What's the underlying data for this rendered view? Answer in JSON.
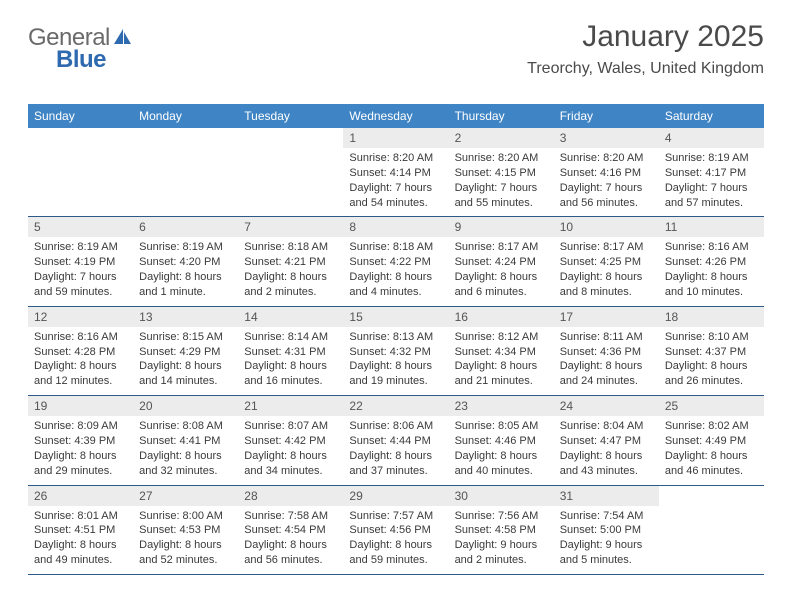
{
  "logo": {
    "part1": "General",
    "part2": "Blue"
  },
  "header": {
    "month_title": "January 2025",
    "location": "Treorchy, Wales, United Kingdom"
  },
  "colors": {
    "header_bg": "#3f84c4",
    "header_text": "#ffffff",
    "row_divider": "#2c5a8a",
    "daynum_bg": "#ececec",
    "daynum_text": "#555555",
    "body_text": "#3a3a3a",
    "page_bg": "#ffffff",
    "logo_grey": "#6a6a6a",
    "logo_blue": "#2f6aaf"
  },
  "calendar": {
    "day_headers": [
      "Sunday",
      "Monday",
      "Tuesday",
      "Wednesday",
      "Thursday",
      "Friday",
      "Saturday"
    ],
    "weeks": [
      [
        {
          "n": "",
          "sr": "",
          "ss": "",
          "dl": ""
        },
        {
          "n": "",
          "sr": "",
          "ss": "",
          "dl": ""
        },
        {
          "n": "",
          "sr": "",
          "ss": "",
          "dl": ""
        },
        {
          "n": "1",
          "sr": "Sunrise: 8:20 AM",
          "ss": "Sunset: 4:14 PM",
          "dl": "Daylight: 7 hours and 54 minutes."
        },
        {
          "n": "2",
          "sr": "Sunrise: 8:20 AM",
          "ss": "Sunset: 4:15 PM",
          "dl": "Daylight: 7 hours and 55 minutes."
        },
        {
          "n": "3",
          "sr": "Sunrise: 8:20 AM",
          "ss": "Sunset: 4:16 PM",
          "dl": "Daylight: 7 hours and 56 minutes."
        },
        {
          "n": "4",
          "sr": "Sunrise: 8:19 AM",
          "ss": "Sunset: 4:17 PM",
          "dl": "Daylight: 7 hours and 57 minutes."
        }
      ],
      [
        {
          "n": "5",
          "sr": "Sunrise: 8:19 AM",
          "ss": "Sunset: 4:19 PM",
          "dl": "Daylight: 7 hours and 59 minutes."
        },
        {
          "n": "6",
          "sr": "Sunrise: 8:19 AM",
          "ss": "Sunset: 4:20 PM",
          "dl": "Daylight: 8 hours and 1 minute."
        },
        {
          "n": "7",
          "sr": "Sunrise: 8:18 AM",
          "ss": "Sunset: 4:21 PM",
          "dl": "Daylight: 8 hours and 2 minutes."
        },
        {
          "n": "8",
          "sr": "Sunrise: 8:18 AM",
          "ss": "Sunset: 4:22 PM",
          "dl": "Daylight: 8 hours and 4 minutes."
        },
        {
          "n": "9",
          "sr": "Sunrise: 8:17 AM",
          "ss": "Sunset: 4:24 PM",
          "dl": "Daylight: 8 hours and 6 minutes."
        },
        {
          "n": "10",
          "sr": "Sunrise: 8:17 AM",
          "ss": "Sunset: 4:25 PM",
          "dl": "Daylight: 8 hours and 8 minutes."
        },
        {
          "n": "11",
          "sr": "Sunrise: 8:16 AM",
          "ss": "Sunset: 4:26 PM",
          "dl": "Daylight: 8 hours and 10 minutes."
        }
      ],
      [
        {
          "n": "12",
          "sr": "Sunrise: 8:16 AM",
          "ss": "Sunset: 4:28 PM",
          "dl": "Daylight: 8 hours and 12 minutes."
        },
        {
          "n": "13",
          "sr": "Sunrise: 8:15 AM",
          "ss": "Sunset: 4:29 PM",
          "dl": "Daylight: 8 hours and 14 minutes."
        },
        {
          "n": "14",
          "sr": "Sunrise: 8:14 AM",
          "ss": "Sunset: 4:31 PM",
          "dl": "Daylight: 8 hours and 16 minutes."
        },
        {
          "n": "15",
          "sr": "Sunrise: 8:13 AM",
          "ss": "Sunset: 4:32 PM",
          "dl": "Daylight: 8 hours and 19 minutes."
        },
        {
          "n": "16",
          "sr": "Sunrise: 8:12 AM",
          "ss": "Sunset: 4:34 PM",
          "dl": "Daylight: 8 hours and 21 minutes."
        },
        {
          "n": "17",
          "sr": "Sunrise: 8:11 AM",
          "ss": "Sunset: 4:36 PM",
          "dl": "Daylight: 8 hours and 24 minutes."
        },
        {
          "n": "18",
          "sr": "Sunrise: 8:10 AM",
          "ss": "Sunset: 4:37 PM",
          "dl": "Daylight: 8 hours and 26 minutes."
        }
      ],
      [
        {
          "n": "19",
          "sr": "Sunrise: 8:09 AM",
          "ss": "Sunset: 4:39 PM",
          "dl": "Daylight: 8 hours and 29 minutes."
        },
        {
          "n": "20",
          "sr": "Sunrise: 8:08 AM",
          "ss": "Sunset: 4:41 PM",
          "dl": "Daylight: 8 hours and 32 minutes."
        },
        {
          "n": "21",
          "sr": "Sunrise: 8:07 AM",
          "ss": "Sunset: 4:42 PM",
          "dl": "Daylight: 8 hours and 34 minutes."
        },
        {
          "n": "22",
          "sr": "Sunrise: 8:06 AM",
          "ss": "Sunset: 4:44 PM",
          "dl": "Daylight: 8 hours and 37 minutes."
        },
        {
          "n": "23",
          "sr": "Sunrise: 8:05 AM",
          "ss": "Sunset: 4:46 PM",
          "dl": "Daylight: 8 hours and 40 minutes."
        },
        {
          "n": "24",
          "sr": "Sunrise: 8:04 AM",
          "ss": "Sunset: 4:47 PM",
          "dl": "Daylight: 8 hours and 43 minutes."
        },
        {
          "n": "25",
          "sr": "Sunrise: 8:02 AM",
          "ss": "Sunset: 4:49 PM",
          "dl": "Daylight: 8 hours and 46 minutes."
        }
      ],
      [
        {
          "n": "26",
          "sr": "Sunrise: 8:01 AM",
          "ss": "Sunset: 4:51 PM",
          "dl": "Daylight: 8 hours and 49 minutes."
        },
        {
          "n": "27",
          "sr": "Sunrise: 8:00 AM",
          "ss": "Sunset: 4:53 PM",
          "dl": "Daylight: 8 hours and 52 minutes."
        },
        {
          "n": "28",
          "sr": "Sunrise: 7:58 AM",
          "ss": "Sunset: 4:54 PM",
          "dl": "Daylight: 8 hours and 56 minutes."
        },
        {
          "n": "29",
          "sr": "Sunrise: 7:57 AM",
          "ss": "Sunset: 4:56 PM",
          "dl": "Daylight: 8 hours and 59 minutes."
        },
        {
          "n": "30",
          "sr": "Sunrise: 7:56 AM",
          "ss": "Sunset: 4:58 PM",
          "dl": "Daylight: 9 hours and 2 minutes."
        },
        {
          "n": "31",
          "sr": "Sunrise: 7:54 AM",
          "ss": "Sunset: 5:00 PM",
          "dl": "Daylight: 9 hours and 5 minutes."
        },
        {
          "n": "",
          "sr": "",
          "ss": "",
          "dl": ""
        }
      ]
    ]
  }
}
